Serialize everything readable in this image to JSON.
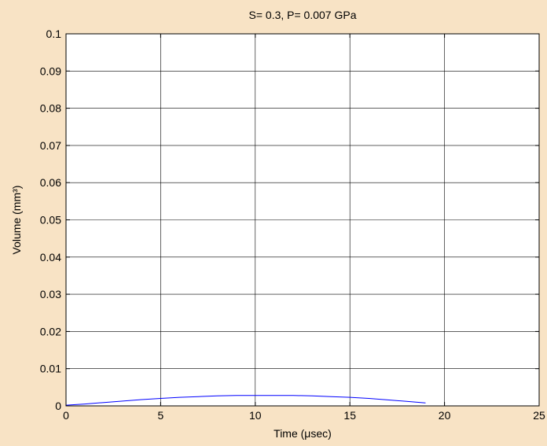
{
  "chart_data": {
    "type": "line",
    "title": "S= 0.3,  P= 0.007 GPa",
    "xlabel": "Time (μsec)",
    "ylabel": "Volume (mm³)",
    "xlim": [
      0,
      25
    ],
    "ylim": [
      0,
      0.1
    ],
    "x_ticks": [
      0,
      5,
      10,
      15,
      20,
      25
    ],
    "y_ticks": [
      0,
      0.01,
      0.02,
      0.03,
      0.04,
      0.05,
      0.06,
      0.07,
      0.08,
      0.09,
      0.1
    ],
    "x_tick_labels": [
      "0",
      "5",
      "10",
      "15",
      "20",
      "25"
    ],
    "y_tick_labels": [
      "0",
      "0.01",
      "0.02",
      "0.03",
      "0.04",
      "0.05",
      "0.06",
      "0.07",
      "0.08",
      "0.09",
      "0.1"
    ],
    "grid": true,
    "series": [
      {
        "color": "#0000ff",
        "x": [
          0,
          1,
          2,
          3,
          4,
          5,
          6,
          7,
          8,
          9,
          10,
          11,
          12,
          13,
          14,
          15,
          16,
          17,
          18,
          19
        ],
        "y": [
          0.0002,
          0.0005,
          0.0009,
          0.0013,
          0.0017,
          0.002,
          0.0023,
          0.0025,
          0.0027,
          0.0028,
          0.0028,
          0.0028,
          0.0028,
          0.0027,
          0.0025,
          0.0023,
          0.002,
          0.0016,
          0.0012,
          0.0008
        ]
      }
    ],
    "colors": {
      "background": "#f8e3c5",
      "plot_area": "#ffffff",
      "grid": "#000000"
    }
  }
}
